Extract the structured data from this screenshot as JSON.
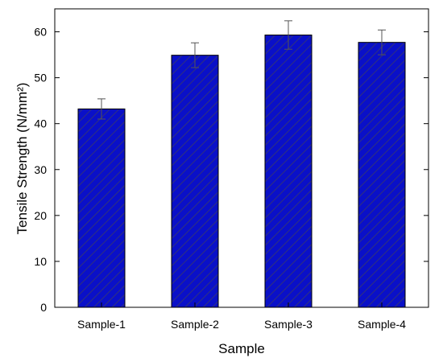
{
  "chart_data": {
    "type": "bar",
    "title": "",
    "xlabel": "Sample",
    "ylabel": "Tensile Strength (N/mm²)",
    "ylim": [
      0,
      65
    ],
    "yticks": [
      0,
      10,
      20,
      30,
      40,
      50,
      60
    ],
    "categories": [
      "Sample-1",
      "Sample-2",
      "Sample-3",
      "Sample-4"
    ],
    "values": [
      43.2,
      54.9,
      59.3,
      57.7
    ],
    "errors": [
      2.2,
      2.7,
      3.1,
      2.7
    ],
    "bar_color": "#0a10c8",
    "hatch_color": "#3a3a6a",
    "grid": false,
    "legend": "none"
  }
}
